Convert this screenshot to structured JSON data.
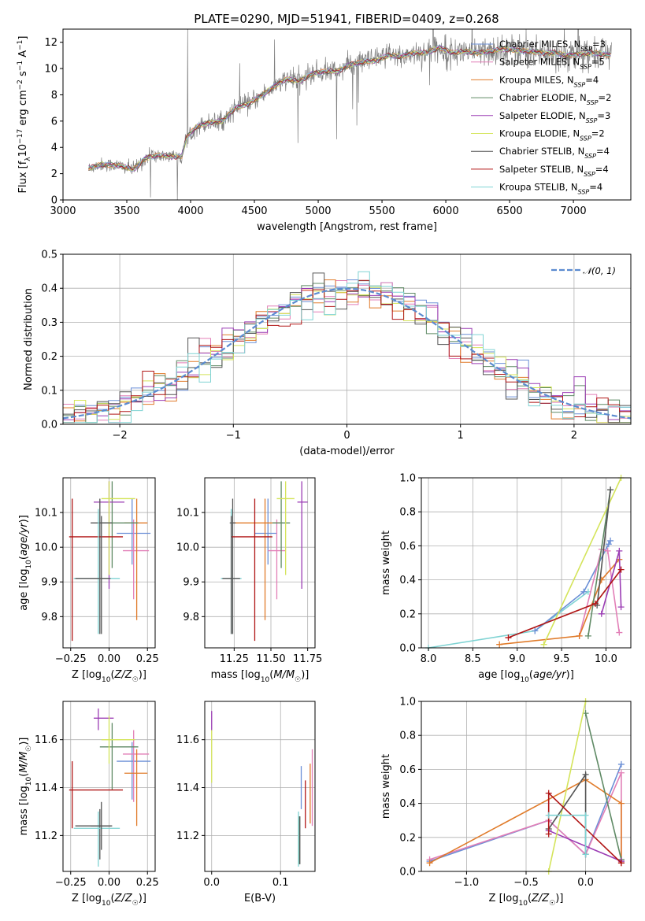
{
  "title": "PLATE=0290, MJD=51941, FIBERID=0409, z=0.268",
  "models": [
    {
      "name": "Chabrier MILES",
      "nssp": "3",
      "color": "#6b8fd6"
    },
    {
      "name": "Salpeter MILES",
      "nssp": "5",
      "color": "#e27fb7"
    },
    {
      "name": "Kroupa MILES",
      "nssp": "4",
      "color": "#e07b2a"
    },
    {
      "name": "Chabrier ELODIE",
      "nssp": "2",
      "color": "#5f8a65"
    },
    {
      "name": "Salpeter ELODIE",
      "nssp": "3",
      "color": "#9b3cb4"
    },
    {
      "name": "Kroupa ELODIE",
      "nssp": "2",
      "color": "#d4e45a"
    },
    {
      "name": "Chabrier STELIB",
      "nssp": "4",
      "color": "#555555"
    },
    {
      "name": "Salpeter STELIB",
      "nssp": "4",
      "color": "#b01515"
    },
    {
      "name": "Kroupa STELIB",
      "nssp": "4",
      "color": "#7fd3d3"
    }
  ],
  "data_color": "#7f7f7f",
  "normal_color": "#5b8bd0",
  "chart_data": [
    {
      "type": "line",
      "xlabel": "wavelength [Angstrom, rest frame]",
      "ylabel": "Flux [f_λ 10^-17 erg cm^-2 s^-1 A^-1]",
      "xlim": [
        3000,
        7450
      ],
      "ylim": [
        0,
        13
      ],
      "xticks": [
        3000,
        3500,
        4000,
        4500,
        5000,
        5500,
        6000,
        6500,
        7000
      ],
      "yticks": [
        0,
        2,
        4,
        6,
        8,
        10,
        12
      ],
      "grid": false,
      "legend": "upper-right",
      "data_range": [
        3200,
        7300
      ],
      "continuum": [
        [
          3200,
          2.4
        ],
        [
          3300,
          2.7
        ],
        [
          3450,
          2.6
        ],
        [
          3550,
          2.3
        ],
        [
          3650,
          3.2
        ],
        [
          3750,
          3.4
        ],
        [
          3850,
          3.3
        ],
        [
          3930,
          3.3
        ],
        [
          3970,
          4.8
        ],
        [
          4050,
          5.6
        ],
        [
          4150,
          5.9
        ],
        [
          4250,
          6.0
        ],
        [
          4350,
          7.0
        ],
        [
          4450,
          7.3
        ],
        [
          4550,
          7.9
        ],
        [
          4650,
          8.6
        ],
        [
          4750,
          9.2
        ],
        [
          4850,
          9.0
        ],
        [
          4950,
          9.6
        ],
        [
          5050,
          9.8
        ],
        [
          5150,
          9.8
        ],
        [
          5250,
          10.3
        ],
        [
          5350,
          10.5
        ],
        [
          5450,
          10.6
        ],
        [
          5550,
          11.0
        ],
        [
          5650,
          10.9
        ],
        [
          5750,
          11.2
        ],
        [
          5850,
          11.2
        ],
        [
          5950,
          11.6
        ],
        [
          6050,
          11.2
        ],
        [
          6150,
          11.3
        ],
        [
          6250,
          11.2
        ],
        [
          6350,
          11.3
        ],
        [
          6450,
          11.5
        ],
        [
          6550,
          11.4
        ],
        [
          6650,
          11.3
        ],
        [
          6750,
          11.2
        ],
        [
          6850,
          11.2
        ],
        [
          6950,
          11.0
        ],
        [
          7050,
          11.1
        ],
        [
          7150,
          11.2
        ],
        [
          7300,
          11.0
        ]
      ]
    },
    {
      "type": "line",
      "xlabel": "(data-model)/error",
      "ylabel": "Normed distribution",
      "xlim": [
        -2.5,
        2.5
      ],
      "ylim": [
        0,
        0.5
      ],
      "xticks": [
        -2,
        -1,
        0,
        1,
        2
      ],
      "yticks": [
        0.0,
        0.1,
        0.2,
        0.3,
        0.4,
        0.5
      ],
      "grid": true,
      "legend": "upper-right",
      "legend_label": "N(0,1)",
      "bin_width": 0.1
    },
    {
      "type": "scatter",
      "xlabel": "Z [log10(Z/Z☉)]",
      "ylabel": "age  [log10(age/yr)]",
      "xlim": [
        -0.3,
        0.3
      ],
      "ylim": [
        9.71,
        10.2
      ],
      "xticks": [
        -0.25,
        0.0,
        0.25
      ],
      "yticks": [
        9.8,
        9.9,
        10.0,
        10.1
      ],
      "grid": true,
      "points": [
        {
          "m": 0,
          "x": 0.15,
          "y": 10.04,
          "xerr": [
            0.1,
            0.12
          ],
          "yerr": [
            0.09,
            0.1
          ]
        },
        {
          "m": 1,
          "x": 0.16,
          "y": 9.99,
          "xerr": [
            0.07,
            0.1
          ],
          "yerr": [
            0.14,
            0.09
          ]
        },
        {
          "m": 2,
          "x": 0.18,
          "y": 10.07,
          "xerr": [
            0.08,
            0.07
          ],
          "yerr": [
            0.28,
            0.07
          ]
        },
        {
          "m": 3,
          "x": 0.02,
          "y": 10.07,
          "xerr": [
            0.08,
            0.17
          ],
          "yerr": [
            0.13,
            0.12
          ]
        },
        {
          "m": 4,
          "x": 0.0,
          "y": 10.13,
          "xerr": [
            0.1,
            0.1
          ],
          "yerr": [
            0.25,
            0.06
          ]
        },
        {
          "m": 5,
          "x": 0.0,
          "y": 10.14,
          "xerr": [
            0.05,
            0.17
          ],
          "yerr": [
            0.22,
            0.05
          ]
        },
        {
          "m": 6,
          "x": -0.06,
          "y": 10.07,
          "xerr": [
            0.06,
            0.08
          ],
          "yerr": [
            0.32,
            0.07
          ]
        },
        {
          "m": 7,
          "x": -0.24,
          "y": 10.03,
          "xerr": [
            0.02,
            0.33
          ],
          "yerr": [
            0.3,
            0.11
          ]
        },
        {
          "m": 8,
          "x": -0.07,
          "y": 9.91,
          "xerr": [
            0.16,
            0.14
          ],
          "yerr": [
            0.16,
            0.2
          ]
        },
        {
          "m": 6,
          "x": -0.05,
          "y": 9.91,
          "xerr": [
            0.17,
            0.06
          ],
          "yerr": [
            0.16,
            0.18
          ]
        }
      ]
    },
    {
      "type": "scatter",
      "xlabel": "mass [log10(M/M☉)]",
      "ylabel": "",
      "xlim": [
        11.05,
        11.8
      ],
      "ylim": [
        9.71,
        10.2
      ],
      "xticks": [
        11.25,
        11.5,
        11.75
      ],
      "yticks": [
        9.8,
        9.9,
        10.0,
        10.1
      ],
      "grid": true,
      "points": [
        {
          "m": 0,
          "x": 11.48,
          "y": 10.04,
          "xerr": [
            0.09,
            0.06
          ],
          "yerr": [
            0.09,
            0.1
          ]
        },
        {
          "m": 1,
          "x": 11.54,
          "y": 9.99,
          "xerr": [
            0.06,
            0.06
          ],
          "yerr": [
            0.14,
            0.09
          ]
        },
        {
          "m": 2,
          "x": 11.46,
          "y": 10.07,
          "xerr": [
            0.22,
            0.12
          ],
          "yerr": [
            0.28,
            0.07
          ]
        },
        {
          "m": 3,
          "x": 11.57,
          "y": 10.07,
          "xerr": [
            0.06,
            0.06
          ],
          "yerr": [
            0.13,
            0.12
          ]
        },
        {
          "m": 4,
          "x": 11.71,
          "y": 10.13,
          "xerr": [
            0.03,
            0.04
          ],
          "yerr": [
            0.25,
            0.06
          ]
        },
        {
          "m": 5,
          "x": 11.6,
          "y": 10.14,
          "xerr": [
            0.06,
            0.06
          ],
          "yerr": [
            0.22,
            0.05
          ]
        },
        {
          "m": 6,
          "x": 11.24,
          "y": 10.07,
          "xerr": [
            0.02,
            0.02
          ],
          "yerr": [
            0.32,
            0.07
          ]
        },
        {
          "m": 7,
          "x": 11.39,
          "y": 10.03,
          "xerr": [
            0.16,
            0.12
          ],
          "yerr": [
            0.3,
            0.11
          ]
        },
        {
          "m": 8,
          "x": 11.23,
          "y": 9.91,
          "xerr": [
            0.07,
            0.07
          ],
          "yerr": [
            0.16,
            0.2
          ]
        },
        {
          "m": 6,
          "x": 11.23,
          "y": 9.91,
          "xerr": [
            0.06,
            0.06
          ],
          "yerr": [
            0.16,
            0.18
          ]
        }
      ]
    },
    {
      "type": "line",
      "xlabel": "age  [log10(age/yr)]",
      "ylabel": "mass weight",
      "xlim": [
        7.92,
        10.28
      ],
      "ylim": [
        0,
        1
      ],
      "xticks": [
        8.0,
        8.5,
        9.0,
        9.5,
        10.0
      ],
      "yticks": [
        0.0,
        0.2,
        0.4,
        0.6,
        0.8,
        1.0
      ],
      "grid": true,
      "series": [
        {
          "m": 8,
          "x": [
            8.0,
            9.2,
            9.8
          ],
          "y": [
            0.0,
            0.1,
            0.33
          ]
        },
        {
          "m": 0,
          "x": [
            9.2,
            9.75,
            10.05,
            10.03
          ],
          "y": [
            0.1,
            0.33,
            0.63,
            0.61
          ]
        },
        {
          "m": 1,
          "x": [
            9.7,
            9.95,
            10.02,
            10.15
          ],
          "y": [
            0.07,
            0.58,
            0.57,
            0.09
          ]
        },
        {
          "m": 2,
          "x": [
            8.8,
            9.7,
            9.95,
            10.15
          ],
          "y": [
            0.02,
            0.07,
            0.4,
            0.52
          ]
        },
        {
          "m": 3,
          "x": [
            9.8,
            10.05
          ],
          "y": [
            0.07,
            0.93
          ]
        },
        {
          "m": 4,
          "x": [
            9.95,
            10.15,
            10.17
          ],
          "y": [
            0.2,
            0.57,
            0.24
          ]
        },
        {
          "m": 5,
          "x": [
            9.3,
            10.17
          ],
          "y": [
            0.02,
            1.0
          ]
        },
        {
          "m": 6,
          "x": [
            9.9,
            10.05
          ],
          "y": [
            0.25,
            0.93
          ]
        },
        {
          "m": 7,
          "x": [
            8.9,
            9.88,
            10.17
          ],
          "y": [
            0.06,
            0.26,
            0.46
          ]
        }
      ]
    },
    {
      "type": "scatter",
      "xlabel": "Z [log10(Z/Z☉)]",
      "ylabel": "mass [log10(M/M☉)]",
      "xlim": [
        -0.3,
        0.3
      ],
      "ylim": [
        11.05,
        11.76
      ],
      "xticks": [
        -0.25,
        0.0,
        0.25
      ],
      "yticks": [
        11.2,
        11.4,
        11.6
      ],
      "grid": true,
      "points": [
        {
          "m": 0,
          "x": 0.15,
          "y": 11.51,
          "xerr": [
            0.1,
            0.12
          ],
          "yerr": [
            0.16,
            0.08
          ]
        },
        {
          "m": 1,
          "x": 0.16,
          "y": 11.54,
          "xerr": [
            0.07,
            0.1
          ],
          "yerr": [
            0.2,
            0.1
          ]
        },
        {
          "m": 2,
          "x": 0.18,
          "y": 11.46,
          "xerr": [
            0.08,
            0.07
          ],
          "yerr": [
            0.22,
            0.1
          ]
        },
        {
          "m": 3,
          "x": 0.02,
          "y": 11.57,
          "xerr": [
            0.08,
            0.17
          ],
          "yerr": [
            0.18,
            0.1
          ]
        },
        {
          "m": 4,
          "x": -0.07,
          "y": 11.69,
          "xerr": [
            0.03,
            0.1
          ],
          "yerr": [
            0.05,
            0.04
          ]
        },
        {
          "m": 5,
          "x": 0.0,
          "y": 11.6,
          "xerr": [
            0.05,
            0.17
          ],
          "yerr": [
            0.1,
            0.1
          ]
        },
        {
          "m": 6,
          "x": -0.06,
          "y": 11.24,
          "xerr": [
            0.06,
            0.08
          ],
          "yerr": [
            0.14,
            0.07
          ]
        },
        {
          "m": 7,
          "x": -0.24,
          "y": 11.39,
          "xerr": [
            0.02,
            0.33
          ],
          "yerr": [
            0.16,
            0.12
          ]
        },
        {
          "m": 8,
          "x": -0.07,
          "y": 11.23,
          "xerr": [
            0.16,
            0.14
          ],
          "yerr": [
            0.16,
            0.07
          ]
        },
        {
          "m": 6,
          "x": -0.05,
          "y": 11.24,
          "xerr": [
            0.17,
            0.06
          ],
          "yerr": [
            0.1,
            0.1
          ]
        }
      ]
    },
    {
      "type": "scatter",
      "xlabel": "E(B-V)",
      "ylabel": "",
      "xlim": [
        -0.01,
        0.15
      ],
      "ylim": [
        11.05,
        11.76
      ],
      "xticks": [
        0.0,
        0.1
      ],
      "yticks": [
        11.2,
        11.4,
        11.6
      ],
      "grid": true,
      "points": [
        {
          "m": 0,
          "x": 0.13,
          "y": 11.41,
          "yerr": [
            0.1,
            0.08
          ]
        },
        {
          "m": 1,
          "x": 0.146,
          "y": 11.44,
          "yerr": [
            0.2,
            0.12
          ]
        },
        {
          "m": 2,
          "x": 0.143,
          "y": 11.4,
          "yerr": [
            0.15,
            0.1
          ]
        },
        {
          "m": 3,
          "x": 0.127,
          "y": 11.22,
          "yerr": [
            0.14,
            0.06
          ]
        },
        {
          "m": 4,
          "x": 0.0,
          "y": 11.68,
          "yerr": [
            0.04,
            0.04
          ]
        },
        {
          "m": 5,
          "x": 0.0,
          "y": 11.54,
          "yerr": [
            0.12,
            0.1
          ]
        },
        {
          "m": 6,
          "x": 0.128,
          "y": 11.2,
          "yerr": [
            0.12,
            0.08
          ]
        },
        {
          "m": 7,
          "x": 0.136,
          "y": 11.33,
          "yerr": [
            0.1,
            0.1
          ]
        },
        {
          "m": 8,
          "x": 0.126,
          "y": 11.23,
          "yerr": [
            0.16,
            0.07
          ]
        }
      ]
    },
    {
      "type": "line",
      "xlabel": "Z [log10(Z/Z☉)]",
      "ylabel": "mass weight",
      "xlim": [
        -1.38,
        0.38
      ],
      "ylim": [
        0,
        1
      ],
      "xticks": [
        -1.0,
        -0.5,
        0.0
      ],
      "yticks": [
        0.0,
        0.2,
        0.4,
        0.6,
        0.8,
        1.0
      ],
      "grid": true,
      "series": [
        {
          "m": 0,
          "x": [
            -1.31,
            -0.31,
            0.0,
            0.3
          ],
          "y": [
            0.06,
            0.3,
            0.1,
            0.63
          ]
        },
        {
          "m": 1,
          "x": [
            -1.31,
            -0.31,
            0.0,
            0.3,
            0.3
          ],
          "y": [
            0.07,
            0.3,
            0.1,
            0.58,
            0.06
          ]
        },
        {
          "m": 2,
          "x": [
            -1.31,
            0.0,
            0.3,
            0.3
          ],
          "y": [
            0.05,
            0.54,
            0.4,
            0.05
          ]
        },
        {
          "m": 3,
          "x": [
            0.0,
            0.3
          ],
          "y": [
            0.93,
            0.07
          ]
        },
        {
          "m": 4,
          "x": [
            -0.31,
            0.3
          ],
          "y": [
            0.24,
            0.06
          ]
        },
        {
          "m": 5,
          "x": [
            -0.31,
            0.0
          ],
          "y": [
            0.0,
            1.0
          ]
        },
        {
          "m": 6,
          "x": [
            -0.31,
            0.0,
            0.0
          ],
          "y": [
            0.25,
            0.57,
            0.1
          ]
        },
        {
          "m": 7,
          "x": [
            -0.31,
            -0.31,
            0.3
          ],
          "y": [
            0.22,
            0.46,
            0.05
          ]
        },
        {
          "m": 8,
          "x": [
            -0.31,
            0.0,
            0.0
          ],
          "y": [
            0.33,
            0.33,
            0.1
          ]
        }
      ]
    }
  ]
}
